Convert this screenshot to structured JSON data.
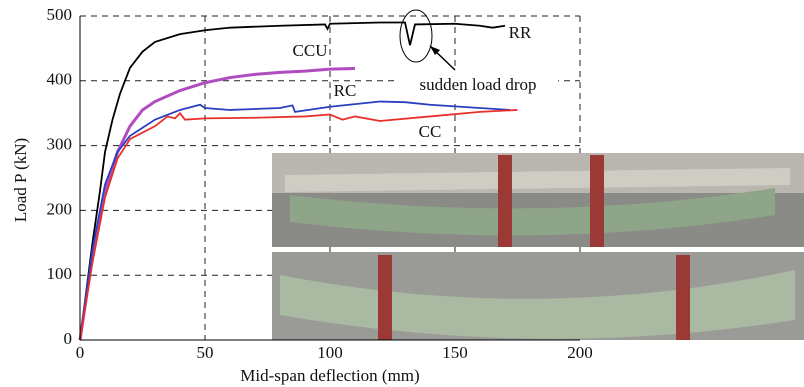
{
  "chart_data": {
    "type": "line",
    "x_label": "Mid-span deflection (mm)",
    "y_label": "Load P (kN)",
    "annotation": "sudden load drop",
    "xlim": [
      0,
      200
    ],
    "xticks": [
      0,
      50,
      100,
      150,
      200
    ],
    "ylim": [
      0,
      500
    ],
    "yticks": [
      0,
      100,
      200,
      300,
      400,
      500
    ],
    "grid": true,
    "series": [
      {
        "name": "RR",
        "color": "#000000",
        "x": [
          0,
          2,
          5,
          8,
          10,
          13,
          16,
          20,
          25,
          30,
          40,
          50,
          60,
          80,
          98,
          99,
          100,
          120,
          130,
          132,
          134,
          150,
          160,
          165,
          170
        ],
        "values": [
          0,
          60,
          150,
          230,
          290,
          340,
          380,
          420,
          445,
          460,
          472,
          478,
          482,
          485,
          487,
          480,
          488,
          490,
          490,
          455,
          487,
          488,
          485,
          482,
          485
        ]
      },
      {
        "name": "CCU",
        "color": "#b04cc0",
        "x": [
          0,
          5,
          10,
          15,
          20,
          25,
          30,
          40,
          50,
          60,
          70,
          80,
          90,
          100,
          110
        ],
        "values": [
          0,
          130,
          230,
          290,
          330,
          355,
          368,
          385,
          397,
          405,
          410,
          413,
          415,
          418,
          419
        ]
      },
      {
        "name": "RC",
        "color": "#2a3fbf",
        "x": [
          0,
          5,
          10,
          15,
          20,
          30,
          40,
          48,
          50,
          60,
          80,
          85,
          86,
          100,
          120,
          130,
          140,
          160,
          172
        ],
        "values": [
          0,
          140,
          240,
          290,
          315,
          340,
          355,
          363,
          358,
          355,
          358,
          362,
          352,
          360,
          368,
          367,
          363,
          358,
          355
        ]
      },
      {
        "name": "CC",
        "color": "#e8302a",
        "x": [
          0,
          5,
          10,
          15,
          20,
          30,
          35,
          38,
          40,
          42,
          50,
          70,
          90,
          100,
          105,
          110,
          120,
          140,
          160,
          175
        ],
        "values": [
          0,
          120,
          220,
          280,
          310,
          330,
          345,
          342,
          350,
          340,
          342,
          343,
          345,
          348,
          340,
          345,
          338,
          345,
          352,
          355
        ]
      }
    ]
  }
}
